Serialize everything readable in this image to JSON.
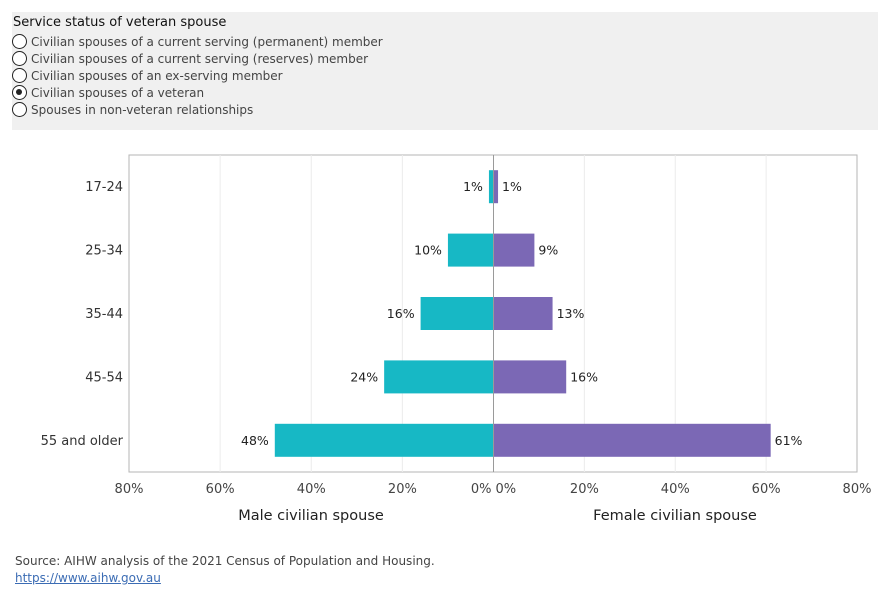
{
  "filter": {
    "title": "Service status of veteran spouse",
    "options": [
      {
        "label": "Civilian spouses of a current serving (permanent) member",
        "selected": false
      },
      {
        "label": "Civilian spouses of a current serving (reserves) member",
        "selected": false
      },
      {
        "label": "Civilian spouses of an ex-serving member",
        "selected": false
      },
      {
        "label": "Civilian spouses of a veteran",
        "selected": true
      },
      {
        "label": "Spouses in non-veteran relationships",
        "selected": false
      }
    ]
  },
  "chart_data": {
    "type": "bar",
    "orientation": "horizontal-butterfly",
    "categories": [
      "17-24",
      "25-34",
      "35-44",
      "45-54",
      "55 and older"
    ],
    "series": [
      {
        "name": "Male civilian spouse",
        "values": [
          1,
          10,
          16,
          24,
          48
        ],
        "labels": [
          "1%",
          "10%",
          "16%",
          "24%",
          "48%"
        ],
        "color": "#17b8c5"
      },
      {
        "name": "Female civilian spouse",
        "values": [
          1,
          9,
          13,
          16,
          61
        ],
        "labels": [
          "1%",
          "9%",
          "13%",
          "16%",
          "61%"
        ],
        "color": "#7b68b5"
      }
    ],
    "xlim": [
      0,
      80
    ],
    "x_ticks_left": [
      "80%",
      "60%",
      "40%",
      "20%",
      "0%"
    ],
    "x_ticks_right": [
      "0%",
      "20%",
      "40%",
      "60%",
      "80%"
    ],
    "grid": true
  },
  "footer": {
    "source": "Source: AIHW analysis of the 2021 Census of Population and Housing.",
    "link": "https://www.aihw.gov.au"
  }
}
